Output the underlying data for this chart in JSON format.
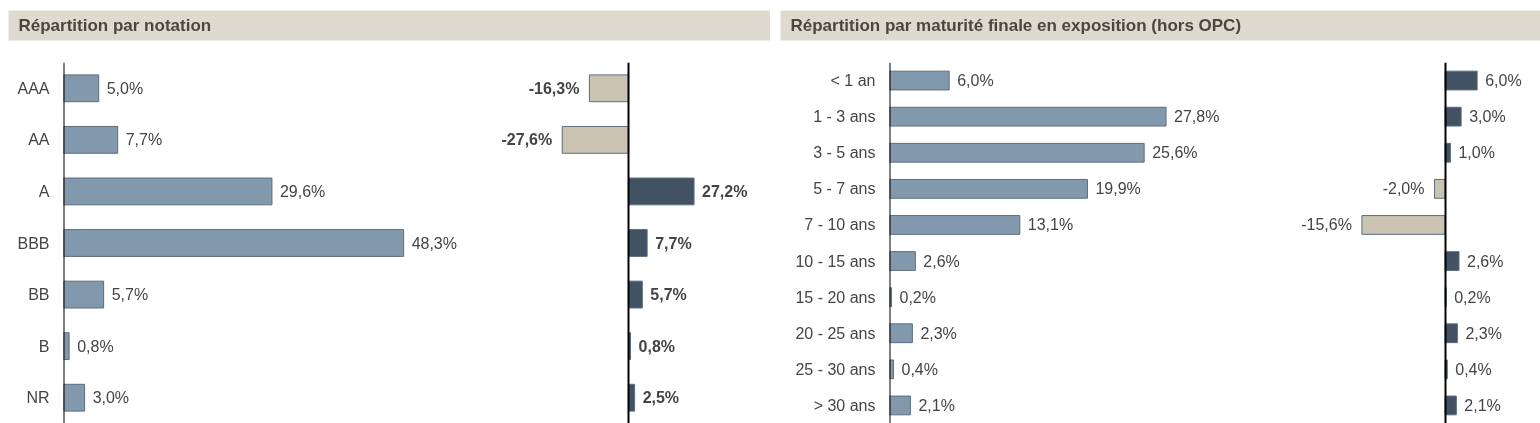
{
  "chart_data": [
    {
      "type": "bar",
      "title": "Répartition par notation",
      "orientation": "horizontal",
      "tick_labels": "y",
      "categories": [
        "AAA",
        "AA",
        "A",
        "BBB",
        "BB",
        "B",
        "NR"
      ],
      "values": [
        5.0,
        7.7,
        29.6,
        48.3,
        5.7,
        0.8,
        3.0
      ],
      "colors": [
        "#8299ad",
        "#8299ad",
        "#8299ad",
        "#8299ad",
        "#8299ad",
        "#8299ad",
        "#8299ad"
      ],
      "value_labels": [
        "5,0%",
        "7,7%",
        "29,6%",
        "48,3%",
        "5,7%",
        "0,8%",
        "3,0%"
      ]
    },
    {
      "type": "bar",
      "orientation": "horizontal",
      "tick_labels": false,
      "categories": [
        null,
        null,
        null,
        null,
        null,
        null,
        null
      ],
      "values": [
        -16.3,
        -27.6,
        27.2,
        7.7,
        5.7,
        0.8,
        2.5
      ],
      "colors": [
        "#cbc3b2",
        "#cbc3b2",
        "#415264",
        "#415264",
        "#415264",
        "#415264",
        "#415264"
      ],
      "value_labels": [
        "-16,3%",
        "-27,6%",
        "27,2%",
        "7,7%",
        "5,7%",
        "0,8%",
        "2,5%"
      ]
    },
    {
      "type": "bar",
      "title": "Répartition par maturité finale en exposition (hors OPC)",
      "orientation": "horizontal",
      "tick_labels": "y",
      "categories": [
        "< 1 an",
        "1 - 3 ans",
        "3 - 5 ans",
        "5 - 7 ans",
        "7 - 10 ans",
        "10 - 15 ans",
        "15 - 20 ans",
        "20 - 25 ans",
        "25 - 30 ans",
        "> 30 ans"
      ],
      "values": [
        6.0,
        27.8,
        25.6,
        19.9,
        13.1,
        2.6,
        0.2,
        2.3,
        0.4,
        2.1
      ],
      "colors": [
        "#8299ad",
        "#8299ad",
        "#8299ad",
        "#8299ad",
        "#8299ad",
        "#8299ad",
        "#8299ad",
        "#8299ad",
        "#8299ad",
        "#8299ad"
      ],
      "value_labels": [
        "6,0%",
        "27,8%",
        "25,6%",
        "19,9%",
        "13,1%",
        "2,6%",
        "0,2%",
        "2,3%",
        "0,4%",
        "2,1%"
      ]
    },
    {
      "type": "bar",
      "orientation": "horizontal",
      "tick_labels": false,
      "categories": [
        null,
        null,
        null,
        null,
        null,
        null,
        null,
        null,
        null,
        null
      ],
      "values": [
        6.0,
        3.0,
        1.0,
        -2.0,
        -15.6,
        2.6,
        0.2,
        2.3,
        0.4,
        2.1
      ],
      "colors": [
        "#415264",
        "#415264",
        "#415264",
        "#cbc3b2",
        "#cbc3b2",
        "#415264",
        "#415264",
        "#415264",
        "#415264",
        "#415264"
      ],
      "value_labels": [
        "6,0%",
        "3,0%",
        "1,0%",
        "-2,0%",
        "-15,6%",
        "2,6%",
        "0,2%",
        "2,3%",
        "0,4%",
        "2,1%"
      ]
    }
  ]
}
